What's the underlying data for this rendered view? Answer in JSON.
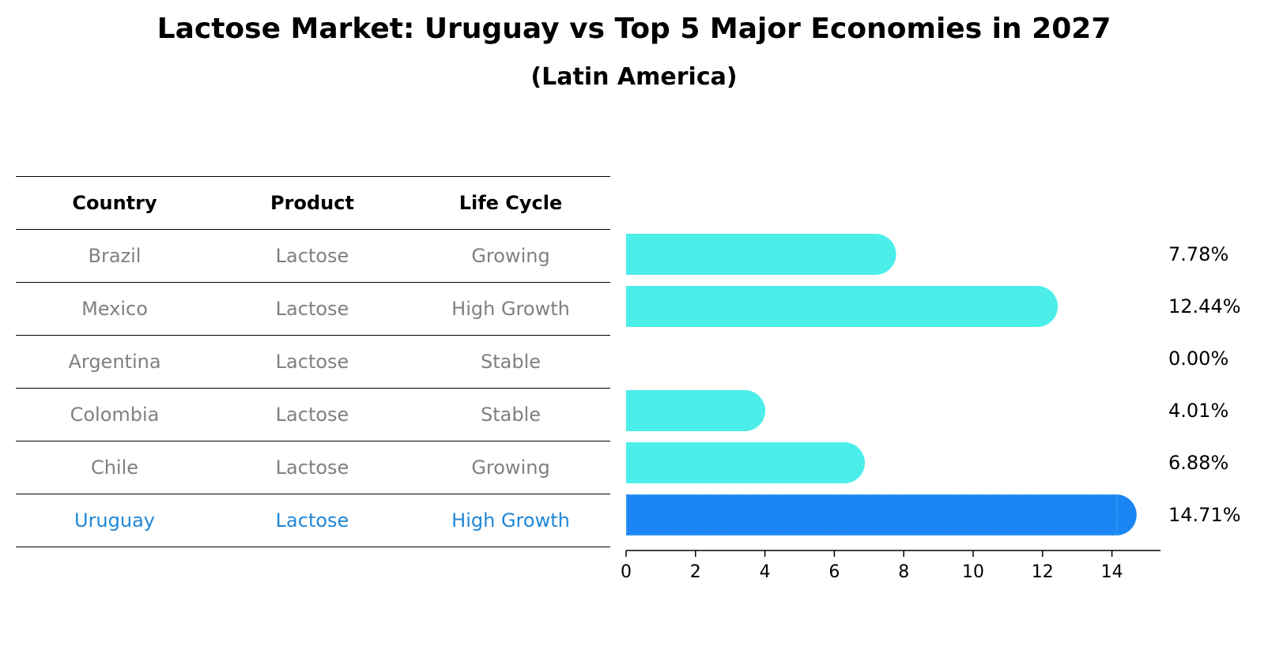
{
  "title": "Lactose Market: Uruguay vs Top 5 Major Economies in 2027",
  "subtitle": "(Latin America)",
  "table": {
    "headers": [
      "Country",
      "Product",
      "Life Cycle"
    ],
    "rows": [
      {
        "country": "Brazil",
        "product": "Lactose",
        "life_cycle": "Growing"
      },
      {
        "country": "Mexico",
        "product": "Lactose",
        "life_cycle": "High Growth"
      },
      {
        "country": "Argentina",
        "product": "Lactose",
        "life_cycle": "Stable"
      },
      {
        "country": "Colombia",
        "product": "Lactose",
        "life_cycle": "Stable"
      },
      {
        "country": "Chile",
        "product": "Lactose",
        "life_cycle": "Growing"
      },
      {
        "country": "Uruguay",
        "product": "Lactose",
        "life_cycle": "High Growth"
      }
    ],
    "highlight_row": "Uruguay"
  },
  "chart_data": {
    "type": "bar",
    "orientation": "horizontal",
    "categories": [
      "Brazil",
      "Mexico",
      "Argentina",
      "Colombia",
      "Chile",
      "Uruguay"
    ],
    "values": [
      7.78,
      12.44,
      0.0,
      4.01,
      6.88,
      14.71
    ],
    "value_labels": [
      "7.78%",
      "12.44%",
      "0.00%",
      "4.01%",
      "6.88%",
      "14.71%"
    ],
    "xlim": [
      0,
      15.4
    ],
    "xticks": [
      0,
      2,
      4,
      6,
      8,
      10,
      12,
      14
    ],
    "grid": false,
    "colors": {
      "default": "#4ceeea",
      "highlight": "#1a86f4"
    },
    "highlight": "Uruguay"
  }
}
